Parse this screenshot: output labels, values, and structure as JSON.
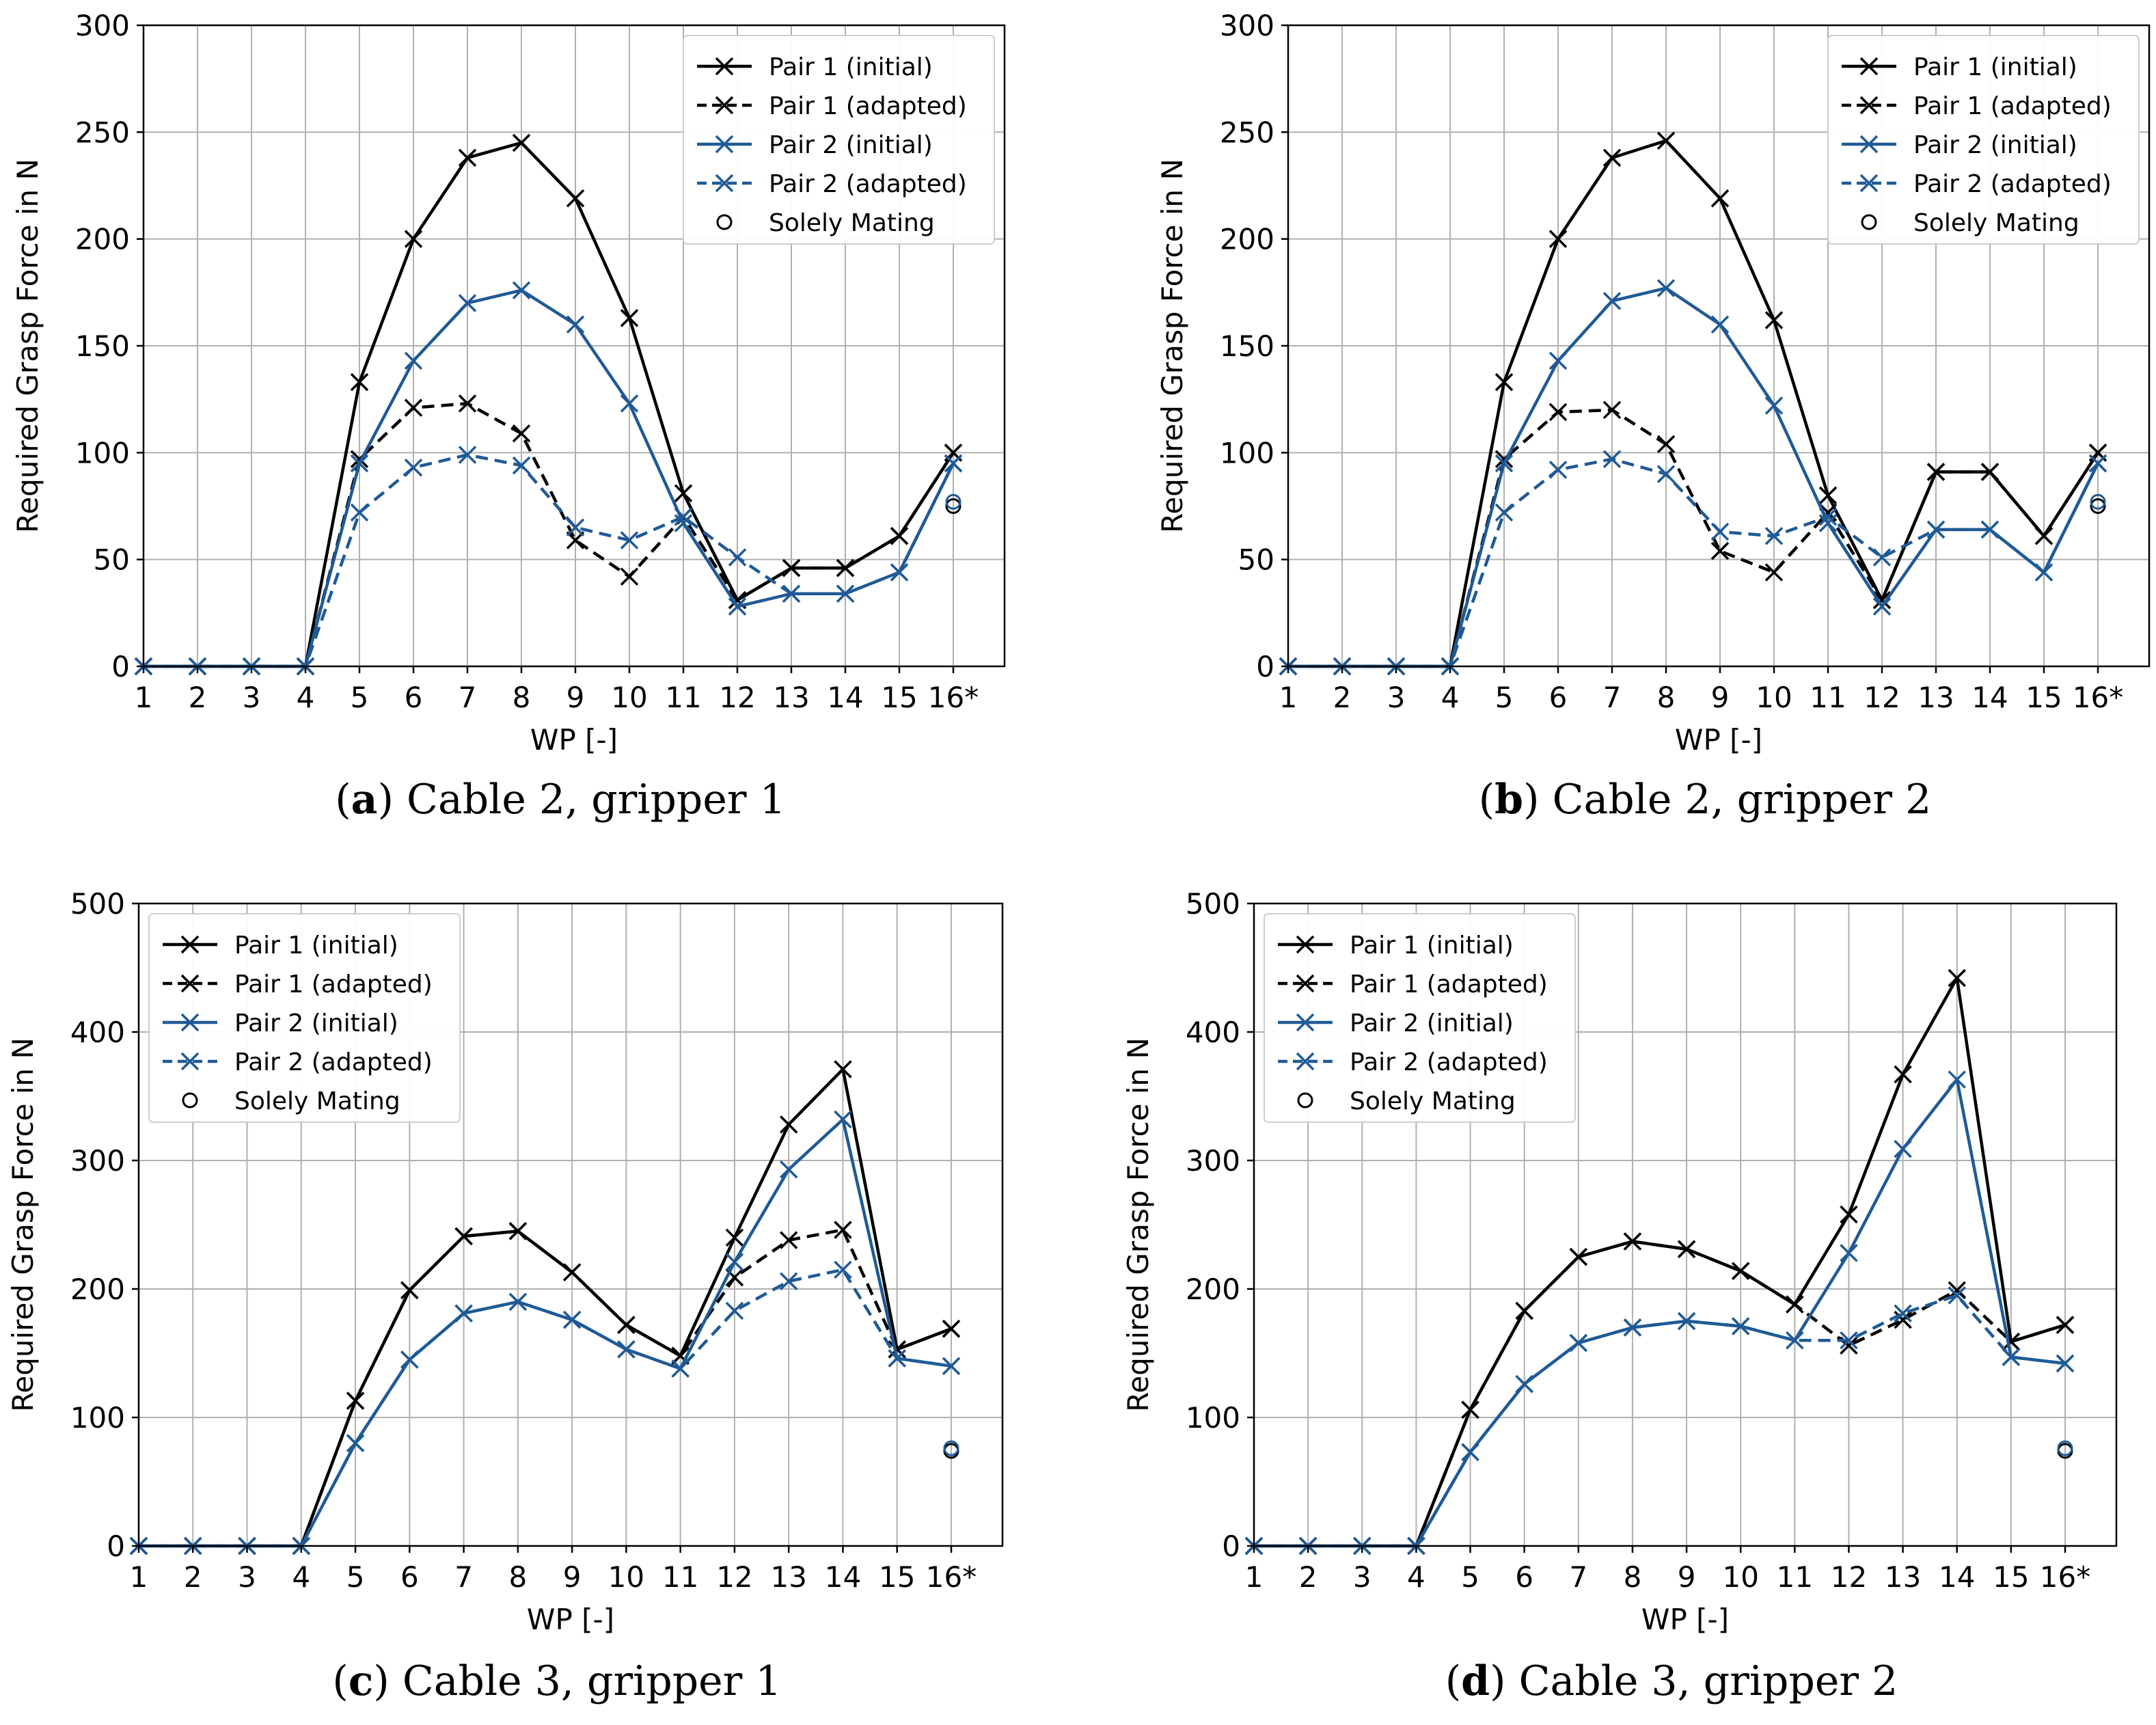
{
  "chart_data": [
    {
      "type": "line",
      "panel_label": "a",
      "caption": "Cable 2, gripper 1",
      "xlabel": "WP [-]",
      "ylabel": "Required Grasp Force in N",
      "categories": [
        "1",
        "2",
        "3",
        "4",
        "5",
        "6",
        "7",
        "8",
        "9",
        "10",
        "11",
        "12",
        "13",
        "14",
        "15",
        "16*"
      ],
      "ylim": [
        0,
        300
      ],
      "yticks": [
        0,
        50,
        100,
        150,
        200,
        250,
        300
      ],
      "grid": true,
      "legend_position": "top-right",
      "series": [
        {
          "name": "Pair 1 (initial)",
          "color": "#000000",
          "dash": false,
          "values": [
            0,
            0,
            0,
            0,
            133,
            200,
            238,
            245,
            219,
            163,
            81,
            31,
            46,
            46,
            61,
            100
          ]
        },
        {
          "name": "Pair 1 (adapted)",
          "color": "#000000",
          "dash": true,
          "values": [
            0,
            0,
            0,
            0,
            97,
            121,
            123,
            109,
            59,
            42,
            70,
            31,
            46,
            46,
            61,
            100
          ]
        },
        {
          "name": "Pair 2 (initial)",
          "color": "#1f5a96",
          "dash": false,
          "values": [
            0,
            0,
            0,
            0,
            95,
            143,
            170,
            176,
            160,
            123,
            67,
            28,
            34,
            34,
            44,
            95
          ]
        },
        {
          "name": "Pair 2 (adapted)",
          "color": "#1f5a96",
          "dash": true,
          "values": [
            0,
            0,
            0,
            0,
            72,
            93,
            99,
            94,
            65,
            59,
            70,
            51,
            34,
            34,
            44,
            95
          ]
        }
      ],
      "solely_mating": {
        "name": "Solely Mating",
        "x": "16*",
        "values": [
          75,
          77
        ]
      }
    },
    {
      "type": "line",
      "panel_label": "b",
      "caption": "Cable 2, gripper 2",
      "xlabel": "WP [-]",
      "ylabel": "Required Grasp Force in N",
      "categories": [
        "1",
        "2",
        "3",
        "4",
        "5",
        "6",
        "7",
        "8",
        "9",
        "10",
        "11",
        "12",
        "13",
        "14",
        "15",
        "16*"
      ],
      "ylim": [
        0,
        300
      ],
      "yticks": [
        0,
        50,
        100,
        150,
        200,
        250,
        300
      ],
      "grid": true,
      "legend_position": "top-right",
      "series": [
        {
          "name": "Pair 1 (initial)",
          "color": "#000000",
          "dash": false,
          "values": [
            0,
            0,
            0,
            0,
            133,
            200,
            238,
            246,
            219,
            162,
            80,
            31,
            91,
            91,
            61,
            100
          ]
        },
        {
          "name": "Pair 1 (adapted)",
          "color": "#000000",
          "dash": true,
          "values": [
            0,
            0,
            0,
            0,
            97,
            119,
            120,
            104,
            54,
            44,
            72,
            31,
            91,
            91,
            61,
            100
          ]
        },
        {
          "name": "Pair 2 (initial)",
          "color": "#1f5a96",
          "dash": false,
          "values": [
            0,
            0,
            0,
            0,
            95,
            143,
            171,
            177,
            160,
            122,
            67,
            28,
            64,
            64,
            44,
            95
          ]
        },
        {
          "name": "Pair 2 (adapted)",
          "color": "#1f5a96",
          "dash": true,
          "values": [
            0,
            0,
            0,
            0,
            72,
            92,
            97,
            90,
            63,
            61,
            70,
            51,
            64,
            64,
            44,
            95
          ]
        }
      ],
      "solely_mating": {
        "name": "Solely Mating",
        "x": "16*",
        "values": [
          75,
          77
        ]
      }
    },
    {
      "type": "line",
      "panel_label": "c",
      "caption": "Cable 3, gripper 1",
      "xlabel": "WP [-]",
      "ylabel": "Required Grasp Force in N",
      "categories": [
        "1",
        "2",
        "3",
        "4",
        "5",
        "6",
        "7",
        "8",
        "9",
        "10",
        "11",
        "12",
        "13",
        "14",
        "15",
        "16*"
      ],
      "ylim": [
        0,
        500
      ],
      "yticks": [
        0,
        100,
        200,
        300,
        400,
        500
      ],
      "grid": true,
      "legend_position": "top-left",
      "series": [
        {
          "name": "Pair 1 (initial)",
          "color": "#000000",
          "dash": false,
          "values": [
            0,
            0,
            0,
            0,
            113,
            199,
            241,
            245,
            213,
            172,
            148,
            240,
            328,
            371,
            153,
            169
          ]
        },
        {
          "name": "Pair 1 (adapted)",
          "color": "#000000",
          "dash": true,
          "values": [
            0,
            0,
            0,
            0,
            113,
            199,
            241,
            245,
            213,
            172,
            148,
            209,
            238,
            246,
            153,
            169
          ]
        },
        {
          "name": "Pair 2 (initial)",
          "color": "#1f5a96",
          "dash": false,
          "values": [
            0,
            0,
            0,
            0,
            80,
            145,
            181,
            190,
            176,
            153,
            138,
            221,
            293,
            332,
            146,
            140
          ]
        },
        {
          "name": "Pair 2 (adapted)",
          "color": "#1f5a96",
          "dash": true,
          "values": [
            0,
            0,
            0,
            0,
            80,
            145,
            181,
            190,
            176,
            153,
            138,
            183,
            206,
            215,
            146,
            140
          ]
        }
      ],
      "solely_mating": {
        "name": "Solely Mating",
        "x": "16*",
        "values": [
          74,
          76
        ]
      }
    },
    {
      "type": "line",
      "panel_label": "d",
      "caption": "Cable 3, gripper 2",
      "xlabel": "WP [-]",
      "ylabel": "Required Grasp Force in N",
      "categories": [
        "1",
        "2",
        "3",
        "4",
        "5",
        "6",
        "7",
        "8",
        "9",
        "10",
        "11",
        "12",
        "13",
        "14",
        "15",
        "16*"
      ],
      "ylim": [
        0,
        500
      ],
      "yticks": [
        0,
        100,
        200,
        300,
        400,
        500
      ],
      "grid": true,
      "legend_position": "top-left",
      "series": [
        {
          "name": "Pair 1 (initial)",
          "color": "#000000",
          "dash": false,
          "values": [
            0,
            0,
            0,
            0,
            106,
            183,
            225,
            237,
            231,
            214,
            188,
            258,
            367,
            442,
            159,
            172
          ]
        },
        {
          "name": "Pair 1 (adapted)",
          "color": "#000000",
          "dash": true,
          "values": [
            0,
            0,
            0,
            0,
            106,
            183,
            225,
            237,
            231,
            214,
            188,
            156,
            176,
            199,
            159,
            172
          ]
        },
        {
          "name": "Pair 2 (initial)",
          "color": "#1f5a96",
          "dash": false,
          "values": [
            0,
            0,
            0,
            0,
            73,
            126,
            158,
            170,
            175,
            171,
            160,
            228,
            309,
            363,
            147,
            142
          ]
        },
        {
          "name": "Pair 2 (adapted)",
          "color": "#1f5a96",
          "dash": true,
          "values": [
            0,
            0,
            0,
            0,
            73,
            126,
            158,
            170,
            175,
            171,
            160,
            160,
            181,
            195,
            147,
            142
          ]
        }
      ],
      "solely_mating": {
        "name": "Solely Mating",
        "x": "16*",
        "values": [
          74,
          76
        ]
      }
    }
  ]
}
